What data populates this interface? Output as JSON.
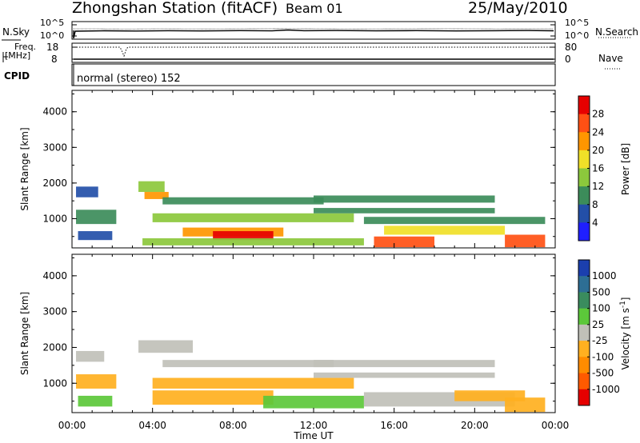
{
  "header": {
    "station": "Zhongshan Station (fitACF)",
    "beam": "Beam 01",
    "date": "25/May/2010"
  },
  "strip": {
    "nsky_label": "N.Sky",
    "nsearch_label": "N.Search",
    "freq_label": "Freq.",
    "freq_unit": "[MHz]",
    "cpid_label": "CPID",
    "nave_label": "Nave",
    "noise_ticks": [
      "10^5",
      "10^0"
    ],
    "freq_ticks": [
      "18",
      "8"
    ],
    "nave_ticks": [
      "80",
      "0"
    ],
    "cpid_text": "normal (stereo) 152"
  },
  "chart_data": [
    {
      "type": "heatmap",
      "title": "",
      "xlabel": "Time UT",
      "ylabel": "Slant Range [km]",
      "xticks": [
        "00:00",
        "04:00",
        "08:00",
        "12:00",
        "16:00",
        "20:00",
        "00:00"
      ],
      "yticks": [
        "1000",
        "2000",
        "3000",
        "4000"
      ],
      "ylim": [
        180,
        4600
      ],
      "xlim_hours": [
        0,
        24
      ],
      "colorbar_label": "Power [dB]",
      "colorbar_ticks": [
        "4",
        "8",
        "12",
        "16",
        "20",
        "24",
        "28"
      ],
      "colorbar_range": [
        0,
        30
      ],
      "colors": [
        "#1f1fff",
        "#234fa8",
        "#3c8c5a",
        "#8cc83c",
        "#f0e028",
        "#ff9600",
        "#ff5014",
        "#e60000"
      ],
      "regions": [
        {
          "t0": 0.2,
          "t1": 1.3,
          "r0": 1600,
          "r1": 1900,
          "value": 7
        },
        {
          "t0": 0.2,
          "t1": 2.2,
          "r0": 850,
          "r1": 1250,
          "value": 10
        },
        {
          "t0": 0.3,
          "t1": 2.0,
          "r0": 400,
          "r1": 650,
          "value": 6
        },
        {
          "t0": 3.3,
          "t1": 4.6,
          "r0": 1750,
          "r1": 2050,
          "value": 13
        },
        {
          "t0": 3.6,
          "t1": 4.8,
          "r0": 1550,
          "r1": 1750,
          "value": 20
        },
        {
          "t0": 4.5,
          "t1": 12.5,
          "r0": 1400,
          "r1": 1600,
          "value": 10
        },
        {
          "t0": 4.0,
          "t1": 14.0,
          "r0": 900,
          "r1": 1150,
          "value": 12
        },
        {
          "t0": 5.5,
          "t1": 10.5,
          "r0": 500,
          "r1": 750,
          "value": 21
        },
        {
          "t0": 7.0,
          "t1": 10.0,
          "r0": 400,
          "r1": 650,
          "value": 27
        },
        {
          "t0": 3.5,
          "t1": 14.5,
          "r0": 250,
          "r1": 450,
          "value": 14
        },
        {
          "t0": 12.0,
          "t1": 21.0,
          "r0": 1450,
          "r1": 1650,
          "value": 8
        },
        {
          "t0": 12.0,
          "t1": 21.0,
          "r0": 1150,
          "r1": 1300,
          "value": 9
        },
        {
          "t0": 14.5,
          "t1": 23.5,
          "r0": 850,
          "r1": 1050,
          "value": 11
        },
        {
          "t0": 15.5,
          "t1": 21.5,
          "r0": 550,
          "r1": 800,
          "value": 17
        },
        {
          "t0": 15.0,
          "t1": 18.0,
          "r0": 200,
          "r1": 500,
          "value": 26
        },
        {
          "t0": 21.5,
          "t1": 23.5,
          "r0": 200,
          "r1": 550,
          "value": 25
        }
      ]
    },
    {
      "type": "heatmap",
      "title": "",
      "xlabel": "Time UT",
      "ylabel": "Slant Range [km]",
      "xticks": [
        "00:00",
        "04:00",
        "08:00",
        "12:00",
        "16:00",
        "20:00",
        "00:00"
      ],
      "yticks": [
        "1000",
        "2000",
        "3000",
        "4000"
      ],
      "ylim": [
        180,
        4600
      ],
      "xlim_hours": [
        0,
        24
      ],
      "colorbar_label": "Velocity [m s-1]",
      "colorbar_ticks": [
        "1000",
        "500",
        "100",
        "25",
        "-25",
        "-100",
        "-500",
        "-1000"
      ],
      "colorbar_range": [
        -1200,
        1200
      ],
      "colors": [
        "#1b3fae",
        "#2d6e94",
        "#3a8c5e",
        "#5cc83a",
        "#c0c0b8",
        "#ffb020",
        "#ff8c00",
        "#ff5a00",
        "#e60000"
      ],
      "regions": [
        {
          "t0": 0.2,
          "t1": 1.6,
          "r0": 1600,
          "r1": 1900,
          "value": 0
        },
        {
          "t0": 0.2,
          "t1": 2.2,
          "r0": 850,
          "r1": 1250,
          "value": -150
        },
        {
          "t0": 0.3,
          "t1": 2.0,
          "r0": 350,
          "r1": 650,
          "value": 150
        },
        {
          "t0": 3.3,
          "t1": 6.0,
          "r0": 1850,
          "r1": 2200,
          "value": 0
        },
        {
          "t0": 4.5,
          "t1": 13.0,
          "r0": 1450,
          "r1": 1650,
          "value": 0
        },
        {
          "t0": 4.0,
          "t1": 14.0,
          "r0": 850,
          "r1": 1150,
          "value": -200
        },
        {
          "t0": 4.0,
          "t1": 10.0,
          "r0": 400,
          "r1": 800,
          "value": -300
        },
        {
          "t0": 9.5,
          "t1": 14.5,
          "r0": 300,
          "r1": 650,
          "value": 250
        },
        {
          "t0": 12.0,
          "t1": 21.0,
          "r0": 1450,
          "r1": 1650,
          "value": 0
        },
        {
          "t0": 12.0,
          "t1": 21.0,
          "r0": 1150,
          "r1": 1300,
          "value": 0
        },
        {
          "t0": 14.5,
          "t1": 22.0,
          "r0": 350,
          "r1": 750,
          "value": 0
        },
        {
          "t0": 19.0,
          "t1": 22.5,
          "r0": 500,
          "r1": 800,
          "value": -150
        },
        {
          "t0": 21.5,
          "t1": 23.5,
          "r0": 200,
          "r1": 600,
          "value": -400
        }
      ]
    }
  ]
}
